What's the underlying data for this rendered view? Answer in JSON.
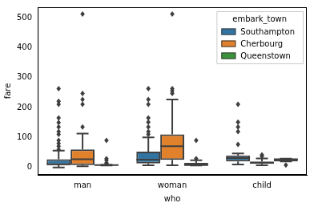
{
  "chart_data": {
    "type": "boxplot",
    "x_label": "who",
    "y_label": "fare",
    "legend_title": "embark_town",
    "legend": "upper right",
    "grid": false,
    "categories": [
      "man",
      "woman",
      "child"
    ],
    "ylim": [
      -25,
      535
    ],
    "yticks": [
      0,
      100,
      200,
      300,
      400,
      500
    ],
    "series": [
      {
        "name": "Southampton",
        "color": "#3274a1",
        "marker": "diamond",
        "values": [
          {
            "whislo": 0,
            "q1": 8,
            "median": 10.5,
            "q3": 27,
            "whishi": 56,
            "fliers": [
              60,
              71,
              80,
              90,
              110,
              120,
              135,
              150,
              165,
              211,
              221,
              263
            ]
          },
          {
            "whislo": 7,
            "q1": 13,
            "median": 26,
            "q3": 53,
            "whishi": 100,
            "fliers": [
              110,
              120,
              135,
              151,
              165,
              211,
              227,
              263
            ]
          },
          {
            "whislo": 10,
            "q1": 20,
            "median": 31,
            "q3": 40,
            "whishi": 47,
            "fliers": [
              77,
              120,
              135,
              151,
              211
            ]
          }
        ]
      },
      {
        "name": "Cherbourg",
        "color": "#e1812c",
        "marker": "diamond",
        "values": [
          {
            "whislo": 4,
            "q1": 8,
            "median": 27,
            "q3": 60,
            "whishi": 113,
            "fliers": [
              135,
              211,
              227,
              247,
              512
            ]
          },
          {
            "whislo": 7,
            "q1": 25,
            "median": 71,
            "q3": 110,
            "whishi": 227,
            "fliers": [
              247,
              256,
              263,
              512
            ]
          },
          {
            "whislo": 7,
            "q1": 12,
            "median": 15,
            "q3": 20,
            "whishi": 30,
            "fliers": [
              37,
              42
            ]
          }
        ]
      },
      {
        "name": "Queenstown",
        "color": "#3a923a",
        "marker": "diamond",
        "values": [
          {
            "whislo": 6.75,
            "q1": 7.5,
            "median": 7.75,
            "q3": 8,
            "whishi": 9,
            "fliers": [
              13,
              15,
              24,
              29,
              90
            ]
          },
          {
            "whislo": 6.75,
            "q1": 7.75,
            "median": 7.9,
            "q3": 15,
            "whishi": 24,
            "fliers": [
              29,
              90
            ]
          },
          {
            "whislo": 20,
            "q1": 20,
            "median": 27,
            "q3": 29,
            "whishi": 29,
            "fliers": [
              8
            ]
          }
        ]
      }
    ]
  }
}
